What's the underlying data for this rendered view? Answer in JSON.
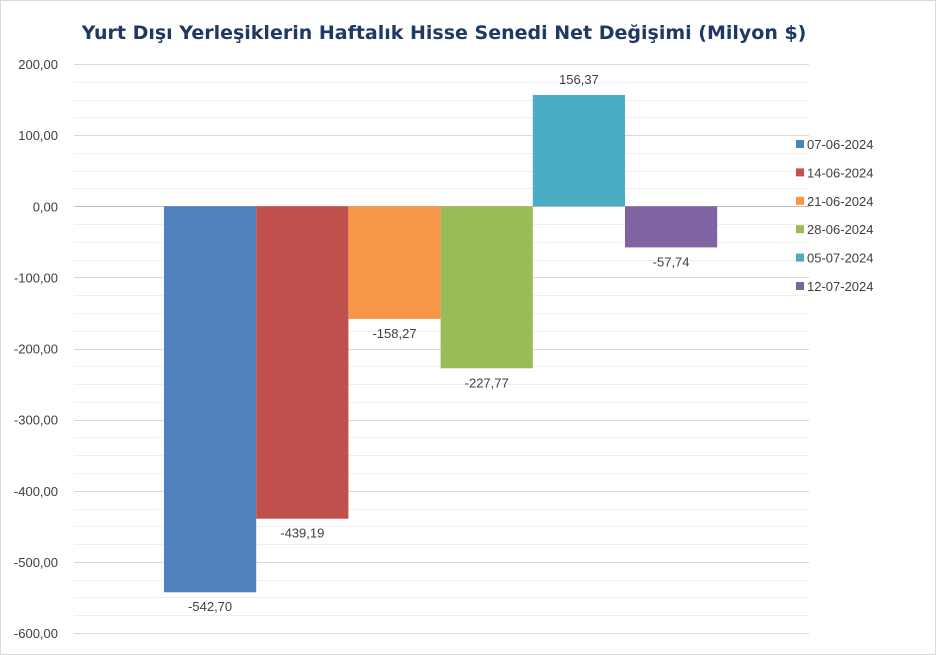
{
  "chart_data": {
    "type": "bar",
    "title": "Yurt Dışı Yerleşiklerin Haftalık Hisse Senedi Net Değişimi (Milyon $)",
    "xlabel": "",
    "ylabel": "",
    "ylim": [
      -600,
      200
    ],
    "yticks": [
      200,
      100,
      0,
      -100,
      -200,
      -300,
      -400,
      -500,
      -600
    ],
    "ytick_labels": [
      "200,00",
      "100,00",
      "0,00",
      "-100,00",
      "-200,00",
      "-300,00",
      "-400,00",
      "-500,00",
      "-600,00"
    ],
    "grid": true,
    "legend_position": "right",
    "series": [
      {
        "name": "07-06-2024",
        "value": -542.7,
        "label": "-542,70",
        "color": "#4f81bd"
      },
      {
        "name": "14-06-2024",
        "value": -439.19,
        "label": "-439,19",
        "color": "#c0504d"
      },
      {
        "name": "21-06-2024",
        "value": -158.27,
        "label": "-158,27",
        "color": "#f79646"
      },
      {
        "name": "28-06-2024",
        "value": -227.77,
        "label": "-227,77",
        "color": "#9bbb59"
      },
      {
        "name": "05-07-2024",
        "value": 156.37,
        "label": "156,37",
        "color": "#4bacc6"
      },
      {
        "name": "12-07-2024",
        "value": -57.74,
        "label": "-57,74",
        "color": "#8064a2"
      }
    ]
  }
}
